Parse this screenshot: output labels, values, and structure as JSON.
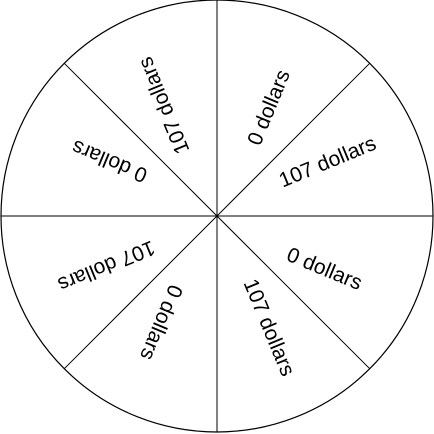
{
  "colors": {
    "background": "#ffffff",
    "stroke": "#000000",
    "text": "#000000"
  },
  "wheel": {
    "sectors": [
      {
        "label": "0 dollars"
      },
      {
        "label": "107 dollars"
      },
      {
        "label": "0 dollars"
      },
      {
        "label": "107 dollars"
      },
      {
        "label": "0 dollars"
      },
      {
        "label": "107 dollars"
      },
      {
        "label": "0 dollars"
      },
      {
        "label": "107 dollars"
      }
    ]
  }
}
